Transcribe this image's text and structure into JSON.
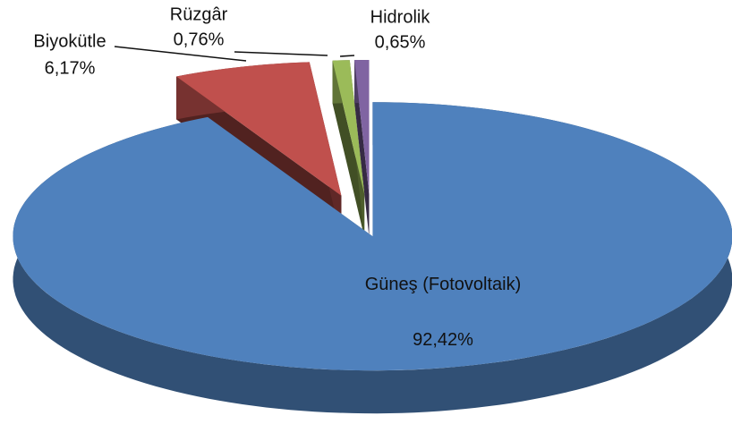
{
  "chart_data": {
    "type": "pie",
    "three_d": true,
    "categories": [
      "Güneş (Fotovoltaik)",
      "Biyokütle",
      "Rüzgâr",
      "Hidrolik"
    ],
    "values": [
      92.42,
      6.17,
      0.76,
      0.65
    ],
    "value_labels": [
      "92,42%",
      "6,17%",
      "0,76%",
      "0,65%"
    ],
    "colors": [
      "#4f81bd",
      "#c0504d",
      "#9bbb59",
      "#8064a2"
    ]
  }
}
